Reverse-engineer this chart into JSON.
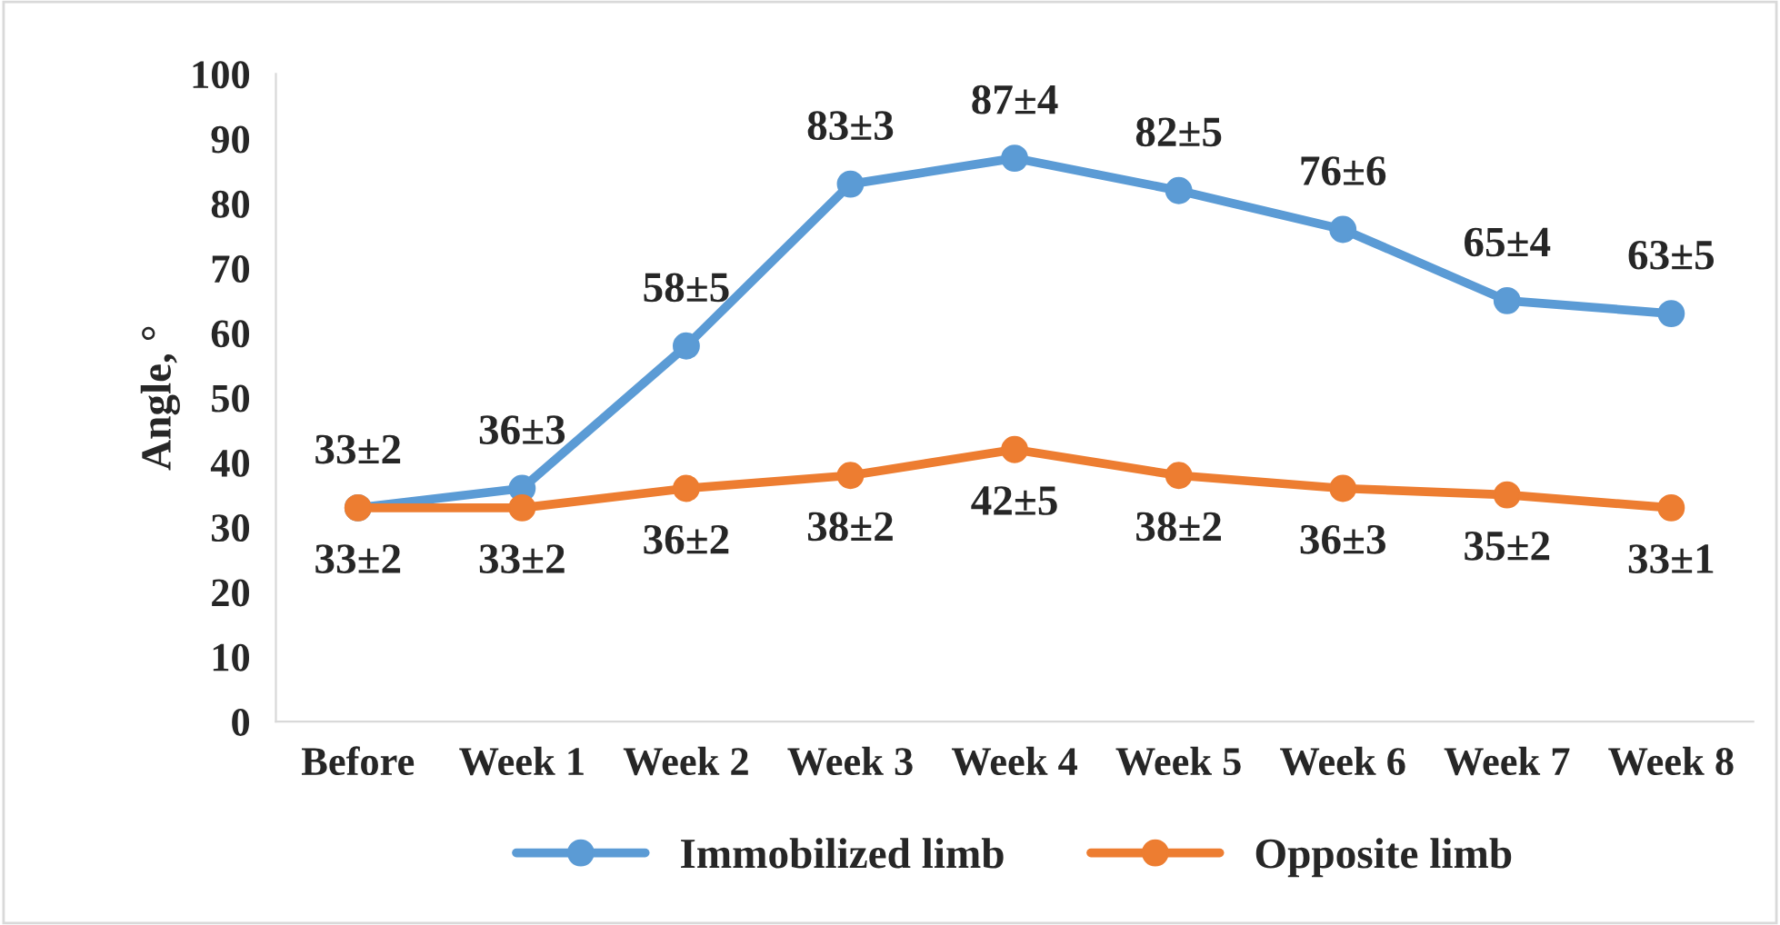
{
  "chart_data": {
    "type": "line",
    "ylabel": "Angle, °",
    "categories": [
      "Before",
      "Week 1",
      "Week 2",
      "Week 3",
      "Week 4",
      "Week 5",
      "Week 6",
      "Week 7",
      "Week 8"
    ],
    "series": [
      {
        "name": "Immobilized limb",
        "color": "#5b9bd5",
        "values": [
          33,
          36,
          58,
          83,
          87,
          82,
          76,
          65,
          63
        ],
        "value_labels": [
          "33±2",
          "36±3",
          "58±5",
          "83±3",
          "87±4",
          "82±5",
          "76±6",
          "65±4",
          "63±5"
        ]
      },
      {
        "name": "Opposite limb",
        "color": "#ed7d31",
        "values": [
          33,
          33,
          36,
          38,
          42,
          38,
          36,
          35,
          33
        ],
        "value_labels": [
          "33±2",
          "33±2",
          "36±2",
          "38±2",
          "42±5",
          "38±2",
          "36±3",
          "35±2",
          "33±1"
        ]
      }
    ],
    "ylim": [
      0,
      100
    ],
    "yticks": [
      0,
      10,
      20,
      30,
      40,
      50,
      60,
      70,
      80,
      90,
      100
    ],
    "grid": false,
    "legend": "bottom",
    "marker": "circle",
    "line_style": "solid"
  }
}
